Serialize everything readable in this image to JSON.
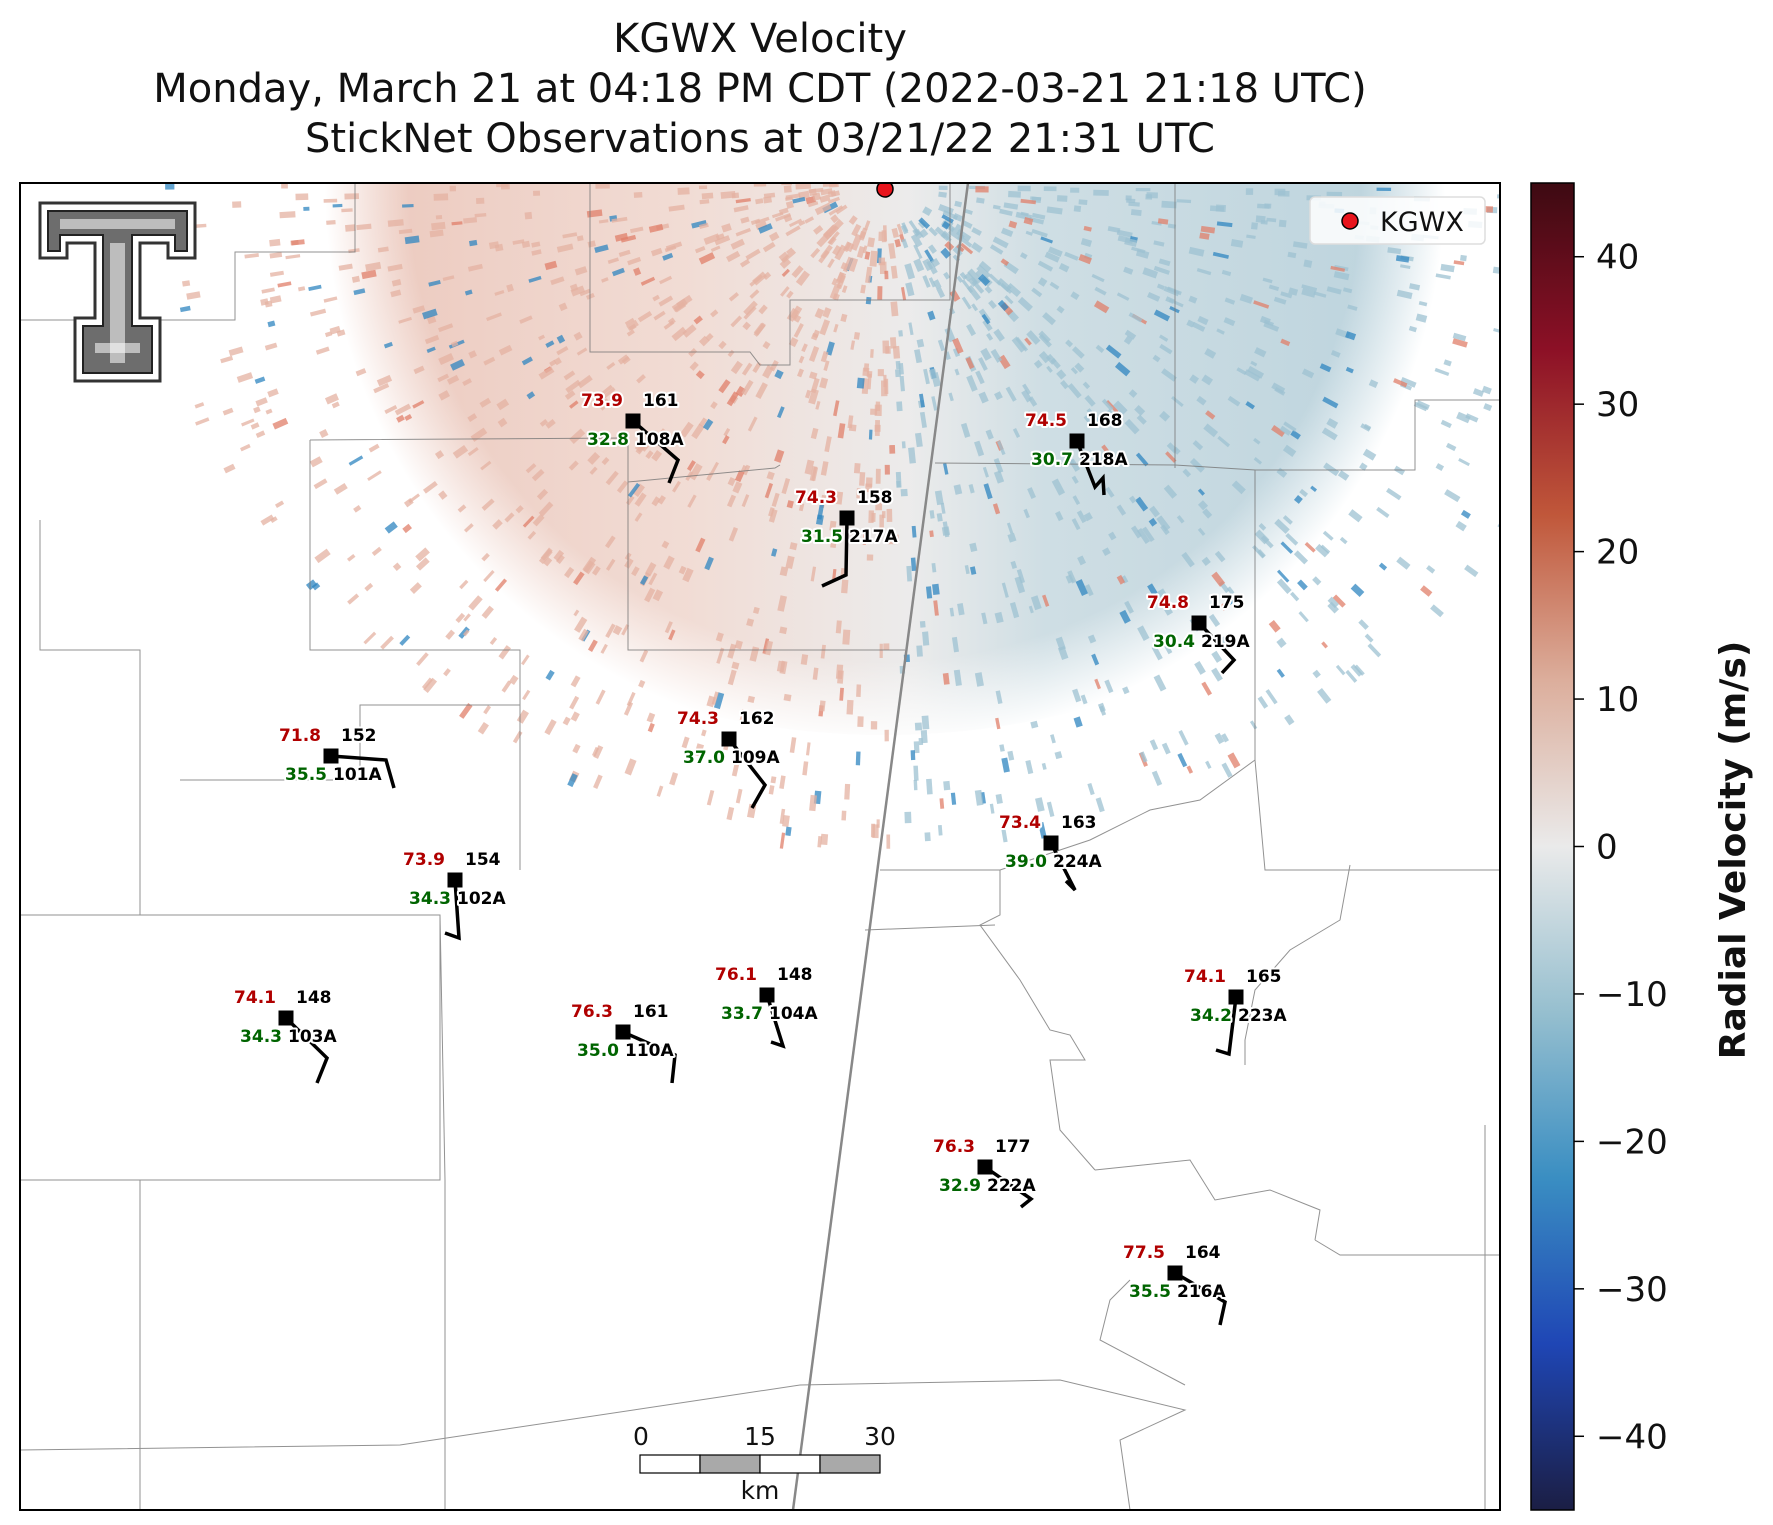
{
  "title": {
    "line1": "KGWX Velocity",
    "line2": "Monday, March 21 at 04:18 PM CDT (2022-03-21 21:18 UTC)",
    "line3": "StickNet Observations at 03/21/22 21:31 UTC"
  },
  "legend": {
    "label": "KGWX",
    "marker_color": "#e8141c"
  },
  "colorbar": {
    "label": "Radial Velocity (m/s)",
    "range": [
      -45,
      45
    ],
    "ticks": [
      {
        "value": 40,
        "label": "40"
      },
      {
        "value": 30,
        "label": "30"
      },
      {
        "value": 20,
        "label": "20"
      },
      {
        "value": 10,
        "label": "10"
      },
      {
        "value": 0,
        "label": "0"
      },
      {
        "value": -10,
        "label": "−10"
      },
      {
        "value": -20,
        "label": "−20"
      },
      {
        "value": -30,
        "label": "−30"
      },
      {
        "value": -40,
        "label": "−40"
      }
    ],
    "colors": [
      "#1b1e44",
      "#1f46b5",
      "#3a8ec2",
      "#96bfcf",
      "#eaeaea",
      "#dcae9c",
      "#c0573a",
      "#8c1026",
      "#3d0a12"
    ]
  },
  "scale_bar": {
    "labels": [
      "0",
      "15",
      "30"
    ],
    "unit": "km"
  },
  "logo": {
    "icon": "texas-tech-double-t-logo"
  },
  "colors": {
    "temperature": "#b00000",
    "dewpoint": "#006400",
    "pressure": "#000000",
    "station_marker": "#000000"
  },
  "stations": [
    {
      "id": "108A",
      "temp": "73.9",
      "dew": "32.8",
      "pres": "161"
    },
    {
      "id": "217A",
      "temp": "74.3",
      "dew": "31.5",
      "pres": "158"
    },
    {
      "id": "218A",
      "temp": "74.5",
      "dew": "30.7",
      "pres": "168"
    },
    {
      "id": "219A",
      "temp": "74.8",
      "dew": "30.4",
      "pres": "175"
    },
    {
      "id": "101A",
      "temp": "71.8",
      "dew": "35.5",
      "pres": "152"
    },
    {
      "id": "109A",
      "temp": "74.3",
      "dew": "37.0",
      "pres": "162"
    },
    {
      "id": "224A",
      "temp": "73.4",
      "dew": "39.0",
      "pres": "163"
    },
    {
      "id": "102A",
      "temp": "73.9",
      "dew": "34.3",
      "pres": "154"
    },
    {
      "id": "103A",
      "temp": "74.1",
      "dew": "34.3",
      "pres": "148"
    },
    {
      "id": "110A",
      "temp": "76.3",
      "dew": "35.0",
      "pres": "161"
    },
    {
      "id": "104A",
      "temp": "76.1",
      "dew": "33.7",
      "pres": "148"
    },
    {
      "id": "223A",
      "temp": "74.1",
      "dew": "34.2",
      "pres": "165"
    },
    {
      "id": "222A",
      "temp": "76.3",
      "dew": "32.9",
      "pres": "177"
    },
    {
      "id": "216A",
      "temp": "77.5",
      "dew": "35.5",
      "pres": "164"
    }
  ]
}
